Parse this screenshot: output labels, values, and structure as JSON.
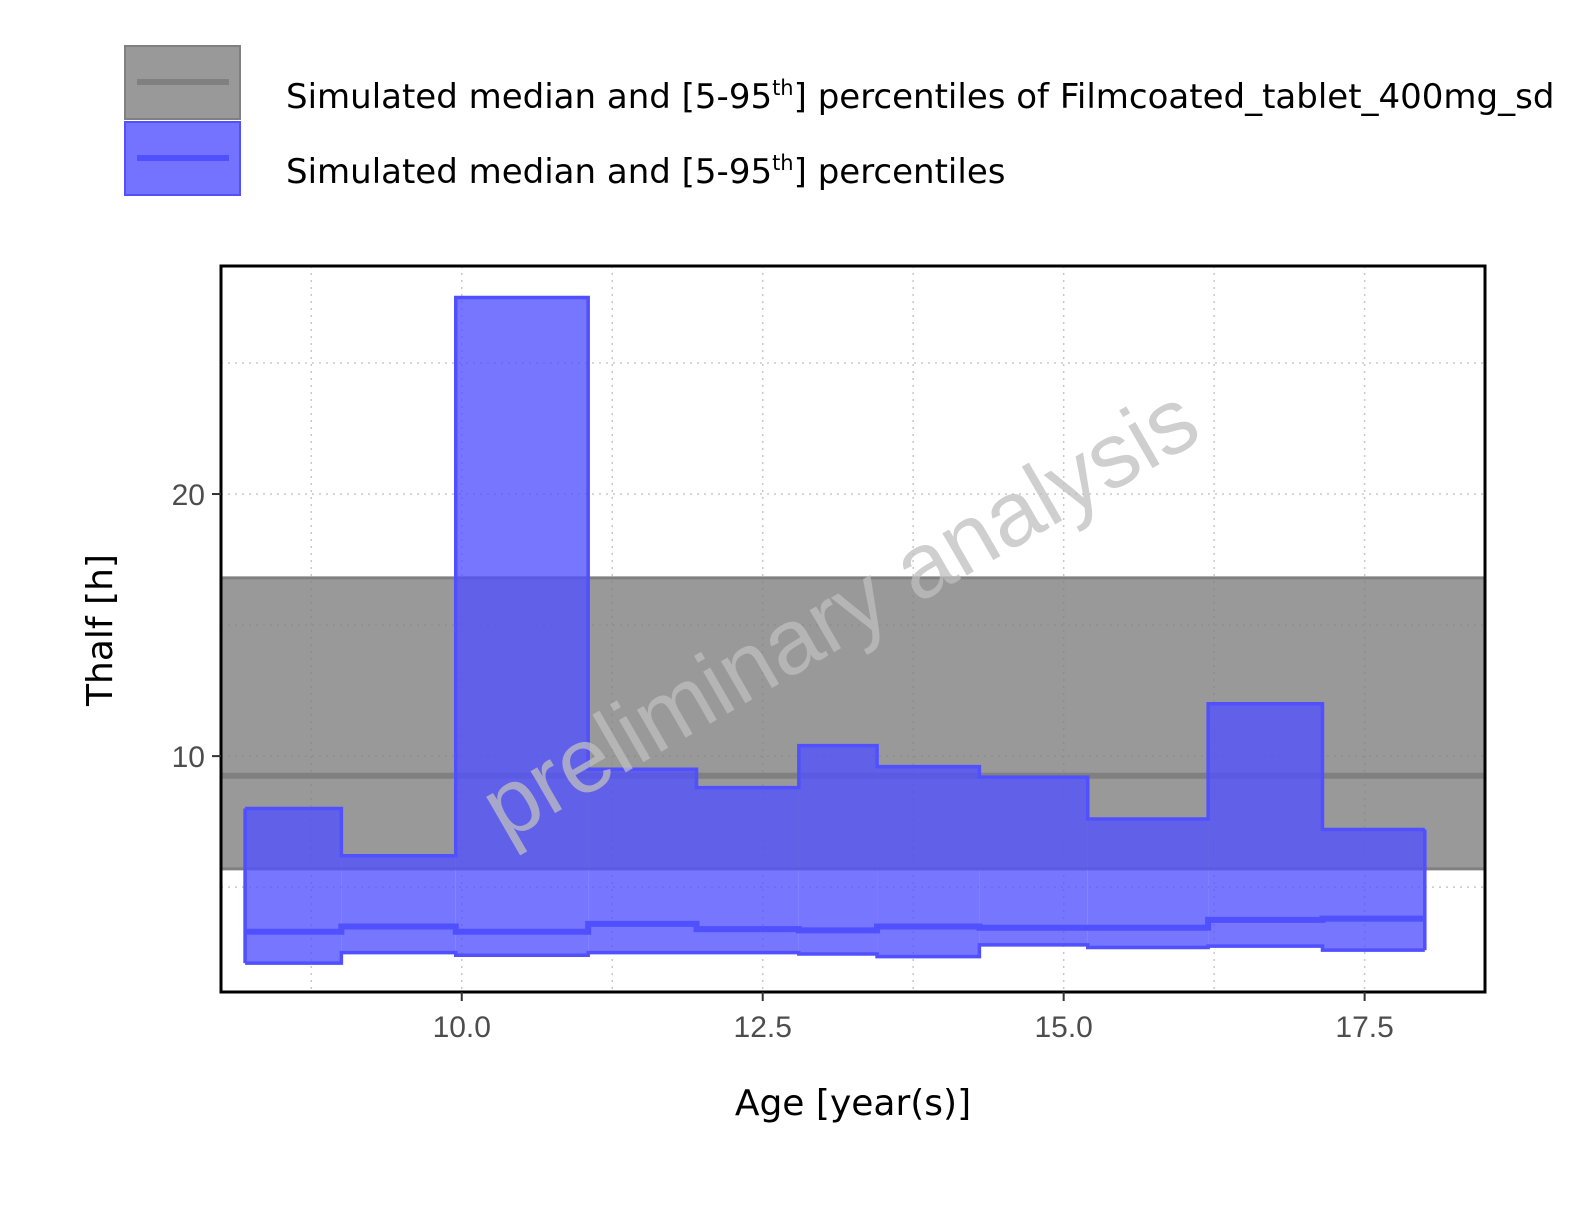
{
  "chart_data": {
    "type": "area",
    "title": "",
    "xlabel": "Age [year(s)]",
    "ylabel": "Thalf [h]",
    "xlim": [
      8.0,
      18.5
    ],
    "ylim": [
      1.0,
      28.7
    ],
    "x_ticks": [
      {
        "value": 10.0,
        "label": "10.0"
      },
      {
        "value": 12.5,
        "label": "12.5"
      },
      {
        "value": 15.0,
        "label": "15.0"
      },
      {
        "value": 17.5,
        "label": "17.5"
      }
    ],
    "y_ticks": [
      {
        "value": 10,
        "label": "10"
      },
      {
        "value": 20,
        "label": "20"
      }
    ],
    "grid": true,
    "watermark": "preliminary analysis",
    "legend": {
      "position": "top-left",
      "entries": [
        {
          "pre": "Simulated median and [5-95",
          "sup": "th",
          "post": "] percentiles of Filmcoated_tablet_400mg_sd",
          "color": "#808080"
        },
        {
          "pre": "Simulated median and [5-95",
          "sup": "th",
          "post": "] percentiles",
          "color": "#5050ff"
        }
      ]
    },
    "reference_range": {
      "name": "Simulated median and [5-95th] percentiles of Filmcoated_tablet_400mg_sd",
      "color": "#808080",
      "median": 9.25,
      "p5": 5.7,
      "p95": 16.8
    },
    "series": [
      {
        "name": "Simulated median and [5-95th] percentiles",
        "color": "#5050ff",
        "steps": [
          {
            "x0": 9.0,
            "x1": 9.0,
            "p5": 2.1,
            "median": 3.3,
            "p95": 8.0
          },
          {
            "x0": 9.0,
            "x1": 9.95,
            "p5": 2.5,
            "median": 3.5,
            "p95": 6.2
          },
          {
            "x0": 9.95,
            "x1": 11.05,
            "p5": 2.4,
            "median": 3.3,
            "p95": 27.5
          },
          {
            "x0": 11.05,
            "x1": 11.95,
            "p5": 2.5,
            "median": 3.6,
            "p95": 9.5
          },
          {
            "x0": 11.95,
            "x1": 12.8,
            "p5": 2.5,
            "median": 3.4,
            "p95": 8.8
          },
          {
            "x0": 12.8,
            "x1": 13.45,
            "p5": 2.45,
            "median": 3.35,
            "p95": 10.4
          },
          {
            "x0": 13.45,
            "x1": 14.3,
            "p5": 2.35,
            "median": 3.5,
            "p95": 9.6
          },
          {
            "x0": 14.3,
            "x1": 15.2,
            "p5": 2.8,
            "median": 3.45,
            "p95": 9.2
          },
          {
            "x0": 15.2,
            "x1": 16.2,
            "p5": 2.7,
            "median": 3.45,
            "p95": 7.6
          },
          {
            "x0": 16.2,
            "x1": 17.15,
            "p5": 2.75,
            "median": 3.75,
            "p95": 12.0
          },
          {
            "x0": 17.15,
            "x1": 18.0,
            "p5": 2.6,
            "median": 3.8,
            "p95": 7.2
          }
        ]
      }
    ]
  }
}
